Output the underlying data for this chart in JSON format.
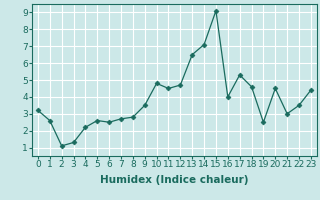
{
  "x": [
    0,
    1,
    2,
    3,
    4,
    5,
    6,
    7,
    8,
    9,
    10,
    11,
    12,
    13,
    14,
    15,
    16,
    17,
    18,
    19,
    20,
    21,
    22,
    23
  ],
  "y": [
    3.2,
    2.6,
    1.1,
    1.3,
    2.2,
    2.6,
    2.5,
    2.7,
    2.8,
    3.5,
    4.8,
    4.5,
    4.7,
    6.5,
    7.1,
    9.1,
    4.0,
    5.3,
    4.6,
    2.5,
    4.5,
    3.0,
    3.5,
    4.4
  ],
  "xlabel": "Humidex (Indice chaleur)",
  "xlim": [
    -0.5,
    23.5
  ],
  "ylim": [
    0.5,
    9.5
  ],
  "yticks": [
    1,
    2,
    3,
    4,
    5,
    6,
    7,
    8,
    9
  ],
  "xticks": [
    0,
    1,
    2,
    3,
    4,
    5,
    6,
    7,
    8,
    9,
    10,
    11,
    12,
    13,
    14,
    15,
    16,
    17,
    18,
    19,
    20,
    21,
    22,
    23
  ],
  "line_color": "#1a6b5e",
  "marker": "D",
  "marker_size": 2.5,
  "bg_color": "#cce8e8",
  "grid_color": "#ffffff",
  "grid_linewidth": 0.8,
  "tick_label_fontsize": 6.5,
  "xlabel_fontsize": 7.5,
  "spine_color": "#1a6b5e"
}
